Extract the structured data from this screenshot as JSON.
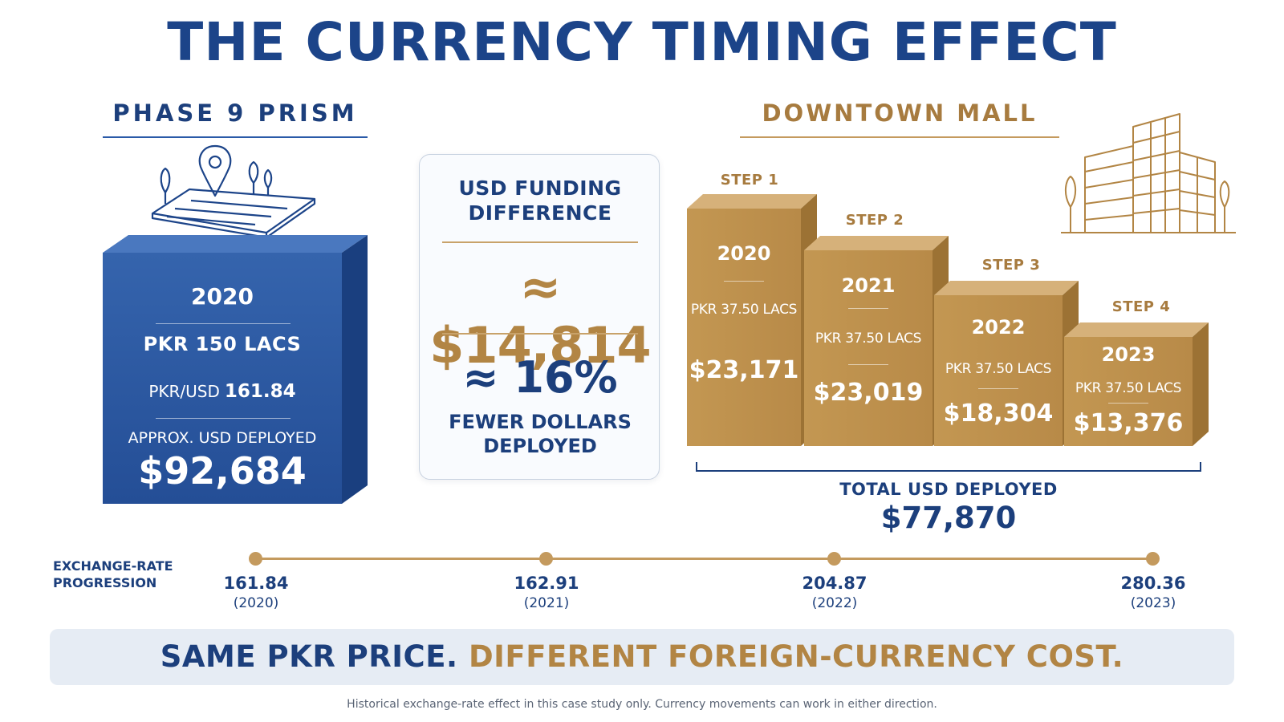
{
  "title": "THE CURRENCY TIMING EFFECT",
  "left": {
    "heading": "PHASE 9 PRISM",
    "icon": "map-pin-land-icon",
    "year": "2020",
    "pkr": "PKR 150 LACS",
    "rate_label": "PKR/USD",
    "rate_value": "161.84",
    "approx_label": "APPROX. USD DEPLOYED",
    "usd": "$92,684"
  },
  "middle": {
    "caption": "USD FUNDING\nDIFFERENCE",
    "difference": "≈ $14,814",
    "percent": "≈ 16%",
    "fewer": "FEWER DOLLARS\nDEPLOYED"
  },
  "right": {
    "heading": "DOWNTOWN MALL",
    "icon": "building-icon",
    "steps": [
      {
        "label": "STEP 1",
        "year": "2020",
        "pkr": "PKR 37.50 LACS",
        "usd": "$23,171"
      },
      {
        "label": "STEP 2",
        "year": "2021",
        "pkr": "PKR 37.50 LACS",
        "usd": "$23,019"
      },
      {
        "label": "STEP 3",
        "year": "2022",
        "pkr": "PKR 37.50 LACS",
        "usd": "$18,304"
      },
      {
        "label": "STEP 4",
        "year": "2023",
        "pkr": "PKR 37.50 LACS",
        "usd": "$13,376"
      }
    ],
    "total_label": "TOTAL USD DEPLOYED",
    "total": "$77,870"
  },
  "exchange": {
    "label": "EXCHANGE-RATE\nPROGRESSION",
    "points": [
      {
        "value": "161.84",
        "year": "(2020)"
      },
      {
        "value": "162.91",
        "year": "(2021)"
      },
      {
        "value": "204.87",
        "year": "(2022)"
      },
      {
        "value": "280.36",
        "year": "(2023)"
      }
    ]
  },
  "banner": {
    "part1": "SAME PKR PRICE.",
    "part2": "DIFFERENT FOREIGN-CURRENCY COST."
  },
  "footnote": "Historical exchange-rate effect in this case study only. Currency movements can work in either direction.",
  "colors": {
    "navy": "#1c3f7c",
    "blue_box": "#2a5aa3",
    "gold": "#c49a5e",
    "gold_text": "#b28544"
  }
}
